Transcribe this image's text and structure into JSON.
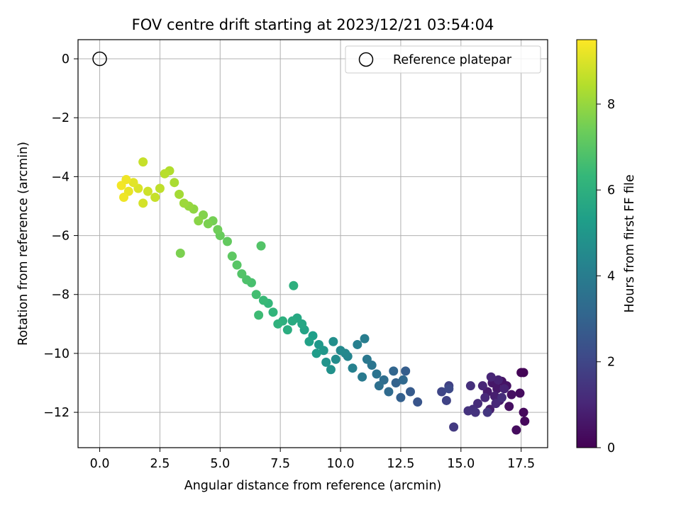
{
  "chart_data": {
    "type": "scatter",
    "title": "FOV centre drift starting at 2023/12/21 03:54:04",
    "xlabel": "Angular distance from reference (arcmin)",
    "ylabel": "Rotation from reference (arcmin)",
    "xlim": [
      -0.9,
      18.6
    ],
    "ylim": [
      -13.2,
      0.65
    ],
    "xticks": [
      0.0,
      2.5,
      5.0,
      7.5,
      10.0,
      12.5,
      15.0,
      17.5
    ],
    "xtick_labels": [
      "0.0",
      "2.5",
      "5.0",
      "7.5",
      "10.0",
      "12.5",
      "15.0",
      "17.5"
    ],
    "yticks": [
      0,
      -2,
      -4,
      -6,
      -8,
      -10,
      -12
    ],
    "ytick_labels": [
      "0",
      "−2",
      "−4",
      "−6",
      "−8",
      "−10",
      "−12"
    ],
    "grid": true,
    "colormap": "viridis",
    "colorbar": {
      "label": "Hours from first FF file",
      "range": [
        0,
        9.5
      ],
      "ticks": [
        0,
        2,
        4,
        6,
        8
      ],
      "tick_labels": [
        "0",
        "2",
        "4",
        "6",
        "8"
      ]
    },
    "legend": {
      "position": "top-right",
      "entries": [
        {
          "label": "Reference platepar",
          "marker": "open-circle"
        }
      ]
    },
    "reference_point": {
      "x": 0.0,
      "y": 0.0
    },
    "series": [
      {
        "points": [
          [
            17.5,
            -10.65,
            0.1
          ],
          [
            17.6,
            -10.65,
            0.1
          ],
          [
            17.6,
            -12.0,
            0.2
          ],
          [
            17.65,
            -12.3,
            0.2
          ],
          [
            17.3,
            -12.6,
            0.3
          ],
          [
            17.45,
            -11.35,
            0.3
          ],
          [
            17.1,
            -11.4,
            0.4
          ],
          [
            17.0,
            -11.8,
            0.4
          ],
          [
            16.9,
            -11.1,
            0.5
          ],
          [
            16.7,
            -10.95,
            0.5
          ],
          [
            16.5,
            -11.2,
            0.6
          ],
          [
            16.3,
            -11.0,
            0.6
          ],
          [
            16.6,
            -11.6,
            0.7
          ],
          [
            16.1,
            -11.3,
            0.7
          ],
          [
            16.2,
            -11.9,
            0.8
          ],
          [
            16.4,
            -11.45,
            0.8
          ],
          [
            16.8,
            -11.2,
            0.9
          ],
          [
            16.55,
            -10.9,
            0.9
          ],
          [
            16.25,
            -10.8,
            1.0
          ],
          [
            15.9,
            -11.1,
            1.0
          ],
          [
            16.0,
            -11.5,
            1.1
          ],
          [
            16.45,
            -11.7,
            1.1
          ],
          [
            16.7,
            -11.5,
            1.2
          ],
          [
            15.7,
            -11.7,
            1.2
          ],
          [
            15.5,
            -11.9,
            1.3
          ],
          [
            15.4,
            -11.1,
            1.3
          ],
          [
            15.6,
            -12.0,
            1.4
          ],
          [
            15.3,
            -11.95,
            1.4
          ],
          [
            16.1,
            -12.0,
            1.5
          ],
          [
            14.7,
            -12.5,
            1.6
          ],
          [
            14.5,
            -11.1,
            1.8
          ],
          [
            14.4,
            -11.6,
            1.9
          ],
          [
            14.2,
            -11.3,
            2.0
          ],
          [
            14.5,
            -11.2,
            2.1
          ],
          [
            13.2,
            -11.65,
            2.5
          ],
          [
            12.9,
            -11.3,
            2.7
          ],
          [
            12.7,
            -10.6,
            2.8
          ],
          [
            12.5,
            -11.5,
            2.9
          ],
          [
            12.3,
            -11.0,
            3.0
          ],
          [
            12.2,
            -10.6,
            3.1
          ],
          [
            12.6,
            -10.9,
            3.2
          ],
          [
            12.0,
            -11.3,
            3.3
          ],
          [
            11.8,
            -10.9,
            3.4
          ],
          [
            11.6,
            -11.1,
            3.5
          ],
          [
            11.5,
            -10.7,
            3.6
          ],
          [
            11.3,
            -10.4,
            3.7
          ],
          [
            11.1,
            -10.2,
            3.8
          ],
          [
            10.9,
            -10.8,
            3.9
          ],
          [
            11.0,
            -9.5,
            4.0
          ],
          [
            10.7,
            -9.7,
            4.1
          ],
          [
            10.5,
            -10.5,
            4.2
          ],
          [
            10.3,
            -10.1,
            4.3
          ],
          [
            10.2,
            -10.0,
            4.4
          ],
          [
            10.0,
            -9.9,
            4.5
          ],
          [
            9.8,
            -10.2,
            4.6
          ],
          [
            9.7,
            -9.6,
            4.7
          ],
          [
            9.6,
            -10.55,
            4.8
          ],
          [
            9.4,
            -10.3,
            4.9
          ],
          [
            9.3,
            -9.9,
            5.0
          ],
          [
            9.1,
            -9.7,
            5.1
          ],
          [
            9.0,
            -10.0,
            5.2
          ],
          [
            8.85,
            -9.4,
            5.3
          ],
          [
            8.7,
            -9.6,
            5.4
          ],
          [
            8.5,
            -9.2,
            5.5
          ],
          [
            8.4,
            -9.0,
            5.6
          ],
          [
            8.2,
            -8.8,
            5.7
          ],
          [
            8.0,
            -8.9,
            5.8
          ],
          [
            7.8,
            -9.2,
            5.9
          ],
          [
            7.6,
            -8.9,
            6.0
          ],
          [
            7.4,
            -9.0,
            6.1
          ],
          [
            7.2,
            -8.6,
            6.2
          ],
          [
            7.0,
            -8.3,
            6.3
          ],
          [
            6.8,
            -8.2,
            6.4
          ],
          [
            6.6,
            -8.7,
            6.5
          ],
          [
            6.5,
            -8.0,
            6.6
          ],
          [
            6.3,
            -7.6,
            6.7
          ],
          [
            6.1,
            -7.5,
            6.8
          ],
          [
            5.9,
            -7.3,
            6.9
          ],
          [
            5.7,
            -7.0,
            7.0
          ],
          [
            5.5,
            -6.7,
            7.1
          ],
          [
            5.3,
            -6.2,
            7.2
          ],
          [
            5.0,
            -6.0,
            7.3
          ],
          [
            4.9,
            -5.8,
            7.4
          ],
          [
            4.7,
            -5.5,
            7.5
          ],
          [
            4.5,
            -5.6,
            7.6
          ],
          [
            4.3,
            -5.3,
            7.7
          ],
          [
            4.1,
            -5.5,
            7.8
          ],
          [
            3.9,
            -5.1,
            7.9
          ],
          [
            3.7,
            -5.0,
            8.0
          ],
          [
            3.5,
            -4.9,
            8.1
          ],
          [
            3.3,
            -4.6,
            8.2
          ],
          [
            3.1,
            -4.2,
            8.3
          ],
          [
            2.9,
            -3.8,
            8.4
          ],
          [
            2.7,
            -3.9,
            8.5
          ],
          [
            2.5,
            -4.4,
            8.6
          ],
          [
            2.3,
            -4.7,
            8.7
          ],
          [
            2.0,
            -4.5,
            8.8
          ],
          [
            1.8,
            -4.9,
            8.9
          ],
          [
            1.6,
            -4.4,
            9.0
          ],
          [
            1.4,
            -4.2,
            9.1
          ],
          [
            1.2,
            -4.5,
            9.2
          ],
          [
            1.0,
            -4.7,
            9.3
          ],
          [
            0.9,
            -4.3,
            9.35
          ],
          [
            1.1,
            -4.1,
            9.3
          ],
          [
            3.35,
            -6.6,
            7.6
          ],
          [
            6.7,
            -6.35,
            6.9
          ],
          [
            8.05,
            -7.7,
            6.0
          ],
          [
            1.8,
            -3.5,
            8.7
          ]
        ]
      }
    ]
  }
}
